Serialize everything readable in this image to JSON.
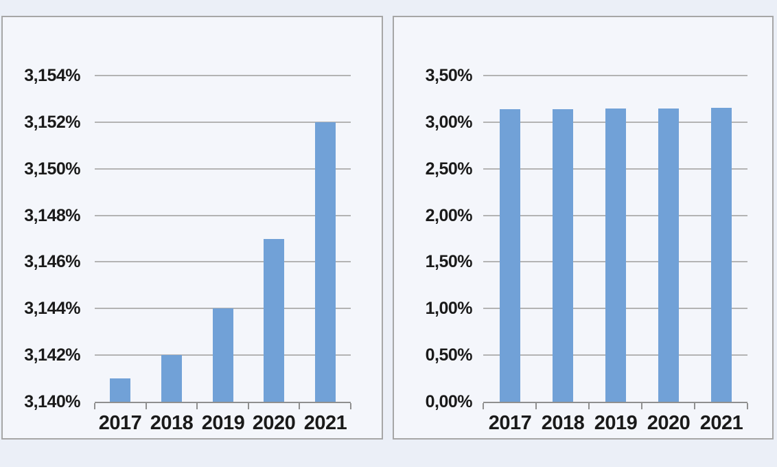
{
  "page": {
    "background_color": "#ebeff7",
    "panel_background_color": "#f4f6fb",
    "panel_border_color": "#a6a6a6",
    "gridline_color": "#b3b3b3",
    "axis_color": "#8f8f8f",
    "label_color": "#1a1a1a"
  },
  "chart_data": [
    {
      "type": "bar",
      "title": "",
      "xlabel": "",
      "ylabel": "",
      "categories": [
        "2017",
        "2018",
        "2019",
        "2020",
        "2021"
      ],
      "values": [
        3.141,
        3.142,
        3.144,
        3.147,
        3.152
      ],
      "unit": "%",
      "number_format": "decimal-comma",
      "ylim": [
        3.14,
        3.154
      ],
      "y_tick_step": 0.002,
      "y_ticks_top_to_bottom": [
        "3,154%",
        "3,152%",
        "3,150%",
        "3,148%",
        "3,146%",
        "3,144%",
        "3,142%",
        "3,140%"
      ],
      "grid": true,
      "legend": false,
      "bar_color": "#71A1D7"
    },
    {
      "type": "bar",
      "title": "",
      "xlabel": "",
      "ylabel": "",
      "categories": [
        "2017",
        "2018",
        "2019",
        "2020",
        "2021"
      ],
      "values": [
        3.141,
        3.142,
        3.144,
        3.147,
        3.152
      ],
      "unit": "%",
      "number_format": "decimal-comma",
      "ylim": [
        0,
        3.5
      ],
      "y_tick_step": 0.5,
      "y_ticks_top_to_bottom": [
        "3,50%",
        "3,00%",
        "2,50%",
        "2,00%",
        "1,50%",
        "1,00%",
        "0,50%",
        "0,00%"
      ],
      "grid": true,
      "legend": false,
      "bar_color": "#71A1D7"
    }
  ]
}
